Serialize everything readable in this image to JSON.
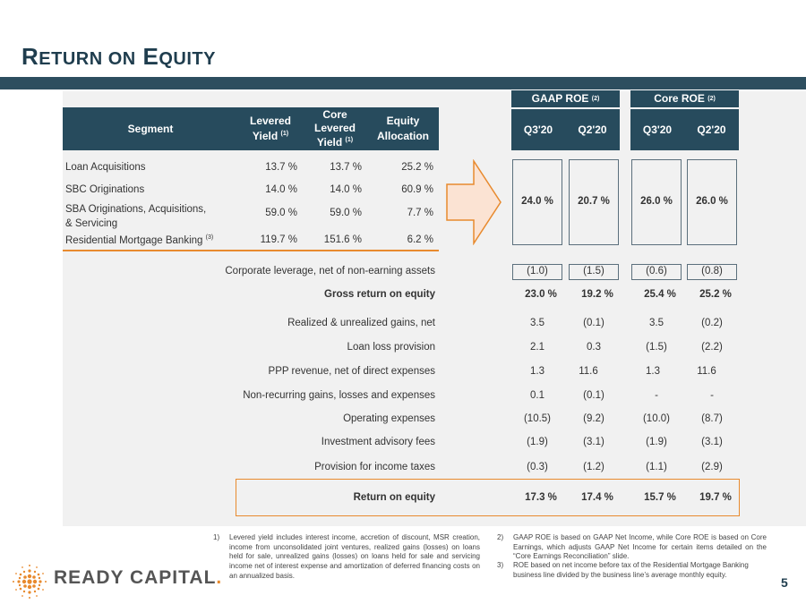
{
  "title": {
    "first_cap": "R",
    "first_rest": "ETURN ON",
    "second_cap": "E",
    "second_rest": "QUITY"
  },
  "headers": {
    "segment": "Segment",
    "levered": "Levered",
    "levered2": "Yield",
    "core1": "Core",
    "core2": "Levered",
    "core3": "Yield",
    "equity1": "Equity",
    "equity2": "Allocation",
    "fn1": "(1)",
    "gaap": "GAAP ROE",
    "core_roe": "Core ROE",
    "fn2": "(2)",
    "q3": "Q3'20",
    "q2": "Q2'20"
  },
  "segments": [
    {
      "name": "Loan Acquisitions",
      "lev": "13.7 %",
      "core": "13.7 %",
      "eq": "25.2 %"
    },
    {
      "name": "SBC Originations",
      "lev": "14.0 %",
      "core": "14.0 %",
      "eq": "60.9 %"
    },
    {
      "name": "SBA Originations, Acquisitions,",
      "name2": "& Servicing",
      "lev": "59.0 %",
      "core": "59.0 %",
      "eq": "7.7 %"
    },
    {
      "name": "Residential Mortgage Banking",
      "fn": "(3)",
      "lev": "119.7 %",
      "core": "151.6 %",
      "eq": "6.2 %"
    }
  ],
  "segment_roe": [
    "24.0  %",
    "20.7  %",
    "26.0  %",
    "26.0  %"
  ],
  "rows": [
    {
      "label": "Corporate leverage, net of non-earning assets",
      "vals": [
        "(1.0)",
        "(1.5)",
        "(0.6)",
        "(0.8)"
      ],
      "bold": false
    },
    {
      "label": "Gross return on equity",
      "vals": [
        "23.0 %",
        "19.2 %",
        "25.4 %",
        "25.2 %"
      ],
      "bold": true
    },
    {
      "label": "Realized & unrealized gains, net",
      "vals": [
        "3.5",
        "(0.1)",
        "3.5",
        "(0.2)"
      ],
      "bold": false
    },
    {
      "label": "Loan loss provision",
      "vals": [
        "2.1",
        "0.3",
        "(1.5)",
        "(2.2)"
      ],
      "bold": false
    },
    {
      "label": "PPP revenue, net of direct expenses",
      "vals": [
        "1.3",
        "11.6",
        "1.3",
        "11.6"
      ],
      "bold": false
    },
    {
      "label": "Non-recurring gains, losses and expenses",
      "vals": [
        "0.1",
        "(0.1)",
        "-",
        "-"
      ],
      "bold": false
    },
    {
      "label": "Operating expenses",
      "vals": [
        "(10.5)",
        "(9.2)",
        "(10.0)",
        "(8.7)"
      ],
      "bold": false
    },
    {
      "label": "Investment advisory fees",
      "vals": [
        "(1.9)",
        "(3.1)",
        "(1.9)",
        "(3.1)"
      ],
      "bold": false
    },
    {
      "label": "Provision for income taxes",
      "vals": [
        "(0.3)",
        "(1.2)",
        "(1.1)",
        "(2.9)"
      ],
      "bold": false
    },
    {
      "label": "Return on equity",
      "vals": [
        "17.3 %",
        "17.4 %",
        "15.7 %",
        "19.7 %"
      ],
      "bold": true
    }
  ],
  "footnotes": [
    {
      "n": "1)",
      "text": "Levered yield includes interest income, accretion of discount, MSR creation, income from unconsolidated joint ventures, realized gains (losses) on loans held for sale, unrealized gains (losses) on loans held for sale and servicing income net of interest expense and amortization of deferred financing costs on an annualized basis."
    },
    {
      "n": "2)",
      "text": "GAAP ROE is based on GAAP Net Income, while Core ROE is based on Core Earnings, which adjusts GAAP Net Income for certain items detailed on the “Core Earnings Reconciliation” slide."
    },
    {
      "n": "3)",
      "text": "ROE based on net income before tax of the Residential Mortgage Banking business line divided by the business line’s average monthly equity."
    }
  ],
  "logo": "READY CAPITAL",
  "logo_mark": ".",
  "page_number": "5",
  "colors": {
    "navy": "#274b5d",
    "orange": "#e88a2e",
    "arrow_fill": "#fbe3d3"
  }
}
